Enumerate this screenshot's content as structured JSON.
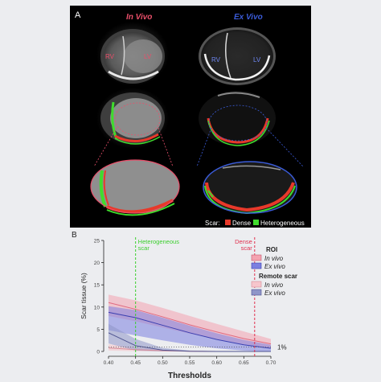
{
  "panel_a": {
    "label": "A",
    "in_vivo_title": "In Vivo",
    "ex_vivo_title": "Ex Vivo",
    "rv": "RV",
    "lv": "LV",
    "scar_legend": {
      "prefix": "Scar:",
      "dense": "Dense",
      "heterogeneous": "Heterogeneous",
      "dense_color": "#e8392a",
      "heterogeneous_color": "#3fdc2d"
    },
    "in_vivo_color": "#e94f6a",
    "ex_vivo_color": "#3a5bd8"
  },
  "panel_b": {
    "label": "B",
    "heterogeneous_marker": {
      "line1": "Heterogeneous",
      "line2": "scar",
      "x": 0.45,
      "color": "#3ccf2e"
    },
    "dense_marker": {
      "line1": "Dense",
      "line2": "scar",
      "x": 0.67,
      "color": "#e0304e"
    },
    "one_percent_label": "1%",
    "legend": {
      "roi_title": "ROI",
      "roi_in_vivo": "In vivo",
      "roi_ex_vivo": "Ex vivo",
      "remote_title": "Remote scar",
      "remote_in_vivo": "In vivo",
      "remote_ex_vivo": "Ex vivo"
    }
  },
  "chart_data": {
    "type": "area",
    "xlabel": "Thresholds",
    "ylabel": "Scar tissue (%)",
    "xlim": [
      0.4,
      0.7
    ],
    "ylim": [
      0,
      25
    ],
    "xticks": [
      "0.40",
      "0.45",
      "0.50",
      "0.55",
      "0.60",
      "0.65",
      "0.70"
    ],
    "yticks": [
      "0",
      "5",
      "10",
      "15",
      "20",
      "25"
    ],
    "reference_line_y": 1,
    "series": [
      {
        "name": "In vivo",
        "group": "ROI",
        "color": "#f4a3b0",
        "x": [
          0.4,
          0.45,
          0.5,
          0.55,
          0.6,
          0.65,
          0.7
        ],
        "mean": [
          11.0,
          9.5,
          7.8,
          6.0,
          4.4,
          2.9,
          1.7
        ],
        "lower": [
          8.0,
          6.8,
          5.4,
          4.0,
          2.8,
          1.6,
          0.8
        ],
        "upper": [
          12.8,
          11.5,
          9.8,
          8.0,
          6.2,
          4.5,
          2.8
        ]
      },
      {
        "name": "Ex vivo",
        "group": "ROI",
        "color": "#7b7fe0",
        "x": [
          0.4,
          0.45,
          0.5,
          0.55,
          0.6,
          0.65,
          0.7
        ],
        "mean": [
          8.8,
          7.6,
          5.9,
          4.2,
          2.7,
          1.5,
          0.7
        ],
        "lower": [
          4.8,
          3.6,
          2.5,
          1.5,
          0.7,
          0.2,
          0.0
        ],
        "upper": [
          10.2,
          9.3,
          7.6,
          5.8,
          4.1,
          2.6,
          1.5
        ]
      },
      {
        "name": "In vivo",
        "group": "Remote scar",
        "color": "#f6c6cc",
        "x": [
          0.4,
          0.45,
          0.5,
          0.55,
          0.6,
          0.65,
          0.7
        ],
        "mean": [
          0.8,
          0.4,
          0.15,
          0.05,
          0.0,
          0.0,
          0.0
        ],
        "lower": [
          0.2,
          0.05,
          0.0,
          0.0,
          0.0,
          0.0,
          0.0
        ],
        "upper": [
          1.6,
          0.9,
          0.4,
          0.15,
          0.05,
          0.0,
          0.0
        ]
      },
      {
        "name": "Ex vivo",
        "group": "Remote scar",
        "color": "#8f95c8",
        "x": [
          0.4,
          0.45,
          0.5,
          0.55,
          0.6,
          0.65,
          0.7
        ],
        "mean": [
          4.2,
          1.3,
          0.3,
          0.05,
          0.0,
          0.0,
          0.0
        ],
        "lower": [
          1.8,
          0.2,
          0.0,
          0.0,
          0.0,
          0.0,
          0.0
        ],
        "upper": [
          6.2,
          2.8,
          0.8,
          0.2,
          0.05,
          0.0,
          0.0
        ]
      }
    ]
  }
}
